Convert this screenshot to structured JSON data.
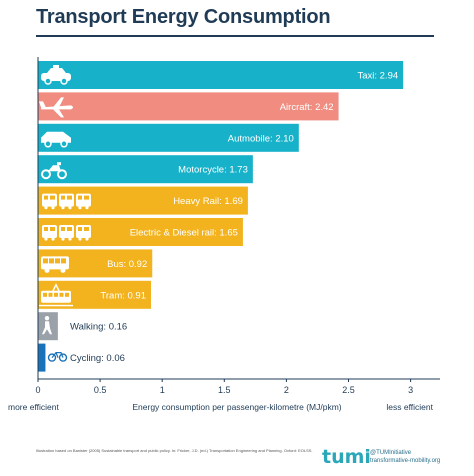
{
  "title": "Transport Energy Consumption",
  "chart_data": {
    "type": "bar",
    "orientation": "horizontal",
    "title": "Transport Energy Consumption",
    "xlabel": "Energy consumption per passenger-kilometre (MJ/pkm)",
    "xlim": [
      0,
      3.1
    ],
    "xticks": [
      "0",
      "0.5",
      "1",
      "1.5",
      "2",
      "2.5",
      "3"
    ],
    "xtick_values": [
      0,
      0.5,
      1,
      1.5,
      2,
      2.5,
      3
    ],
    "left_caption": "more efficient",
    "right_caption": "less efficient",
    "categories": [
      "Taxi",
      "Aircraft",
      "Autmobile",
      "Motorcycle",
      "Heavy Rail",
      "Electric & Diesel rail",
      "Bus",
      "Tram",
      "Walking",
      "Cycling"
    ],
    "values": [
      2.94,
      2.42,
      2.1,
      1.73,
      1.69,
      1.65,
      0.92,
      0.91,
      0.16,
      0.06
    ],
    "labels": [
      "Taxi: 2.94",
      "Aircraft: 2.42",
      "Autmobile: 2.10",
      "Motorcycle: 1.73",
      "Heavy Rail: 1.69",
      "Electric & Diesel rail: 1.65",
      "Bus: 0.92",
      "Tram: 0.91",
      "Walking: 0.16",
      "Cycling: 0.06"
    ],
    "colors": [
      "#17b2c9",
      "#f08d80",
      "#17b2c9",
      "#17b2c9",
      "#f2b31f",
      "#f2b31f",
      "#f2b31f",
      "#f2b31f",
      "#9aa1a8",
      "#1a72b8"
    ],
    "icons": [
      "taxi-icon",
      "aircraft-icon",
      "car-icon",
      "motorcycle-icon",
      "heavy-rail-icon",
      "electric-diesel-rail-icon",
      "bus-icon",
      "tram-icon",
      "walking-icon",
      "cycling-icon"
    ],
    "grid": false
  },
  "footnote": "Illustration based on Banister (2005) Sustainable transport and public policy. In: Fricker, J.D. (ed.) Transportation Engineering and Planning. Oxford: EOLSS.",
  "brand": {
    "logo": "tumi",
    "handle": "@TUMInitiative",
    "website": "transformative-mobility.org",
    "color": "#2aa7b8"
  }
}
